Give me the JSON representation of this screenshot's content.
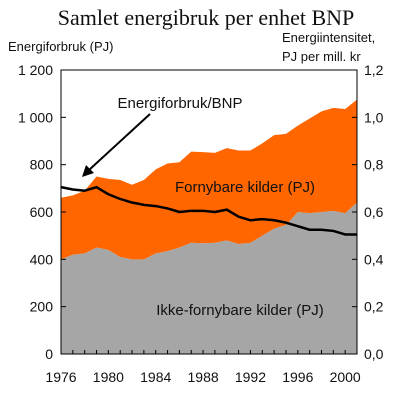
{
  "chart_data": {
    "type": "area",
    "title": "Samlet energibruk per enhet BNP",
    "y_left_label": "Energiforbruk (PJ)",
    "y_right_label_lines": [
      "Energiintensitet,",
      "PJ per mill. kr"
    ],
    "y_left_range": [
      0,
      1200
    ],
    "y_right_range": [
      0,
      1.2
    ],
    "y_left_ticks": [
      "0",
      "200",
      "400",
      "600",
      "800",
      "1 000",
      "1 200"
    ],
    "y_right_ticks": [
      "0,0",
      "0,2",
      "0,4",
      "0,6",
      "0,8",
      "1,0",
      "1,2"
    ],
    "x_ticks": [
      "1976",
      "1980",
      "1984",
      "1988",
      "1992",
      "1996",
      "2000"
    ],
    "x_range": [
      1976,
      2001
    ],
    "grid": false,
    "x": [
      1976,
      1977,
      1978,
      1979,
      1980,
      1981,
      1982,
      1983,
      1984,
      1985,
      1986,
      1987,
      1988,
      1989,
      1990,
      1991,
      1992,
      1993,
      1994,
      1995,
      1996,
      1997,
      1998,
      1999,
      2000,
      2001
    ],
    "series": [
      {
        "name": "Ikke-fornybare kilder (PJ)",
        "kind": "stacked-area",
        "color": "#a6a6a6",
        "values": [
          400,
          420,
          425,
          450,
          440,
          410,
          400,
          400,
          425,
          435,
          450,
          470,
          468,
          470,
          480,
          465,
          470,
          500,
          530,
          545,
          600,
          595,
          600,
          605,
          595,
          640
        ]
      },
      {
        "name": "Fornybare kilder (PJ)",
        "kind": "stacked-area",
        "color": "#ff6600",
        "values": [
          260,
          250,
          265,
          300,
          300,
          325,
          315,
          335,
          355,
          370,
          360,
          385,
          385,
          380,
          390,
          395,
          390,
          390,
          395,
          385,
          365,
          400,
          425,
          435,
          440,
          435
        ]
      },
      {
        "name": "Energiforbruk/BNP",
        "kind": "line",
        "axis": "right",
        "color": "#000000",
        "values": [
          0.705,
          0.695,
          0.69,
          0.705,
          0.675,
          0.655,
          0.64,
          0.63,
          0.625,
          0.615,
          0.6,
          0.605,
          0.605,
          0.6,
          0.61,
          0.58,
          0.565,
          0.57,
          0.565,
          0.555,
          0.54,
          0.525,
          0.525,
          0.52,
          0.505,
          0.505
        ]
      }
    ],
    "annotations": [
      {
        "text": "Energiforbruk/BNP",
        "target": "line"
      },
      {
        "text": "Fornybare kilder (PJ)",
        "target": "upper-area"
      },
      {
        "text": "Ikke-fornybare kilder (PJ)",
        "target": "lower-area"
      }
    ]
  }
}
